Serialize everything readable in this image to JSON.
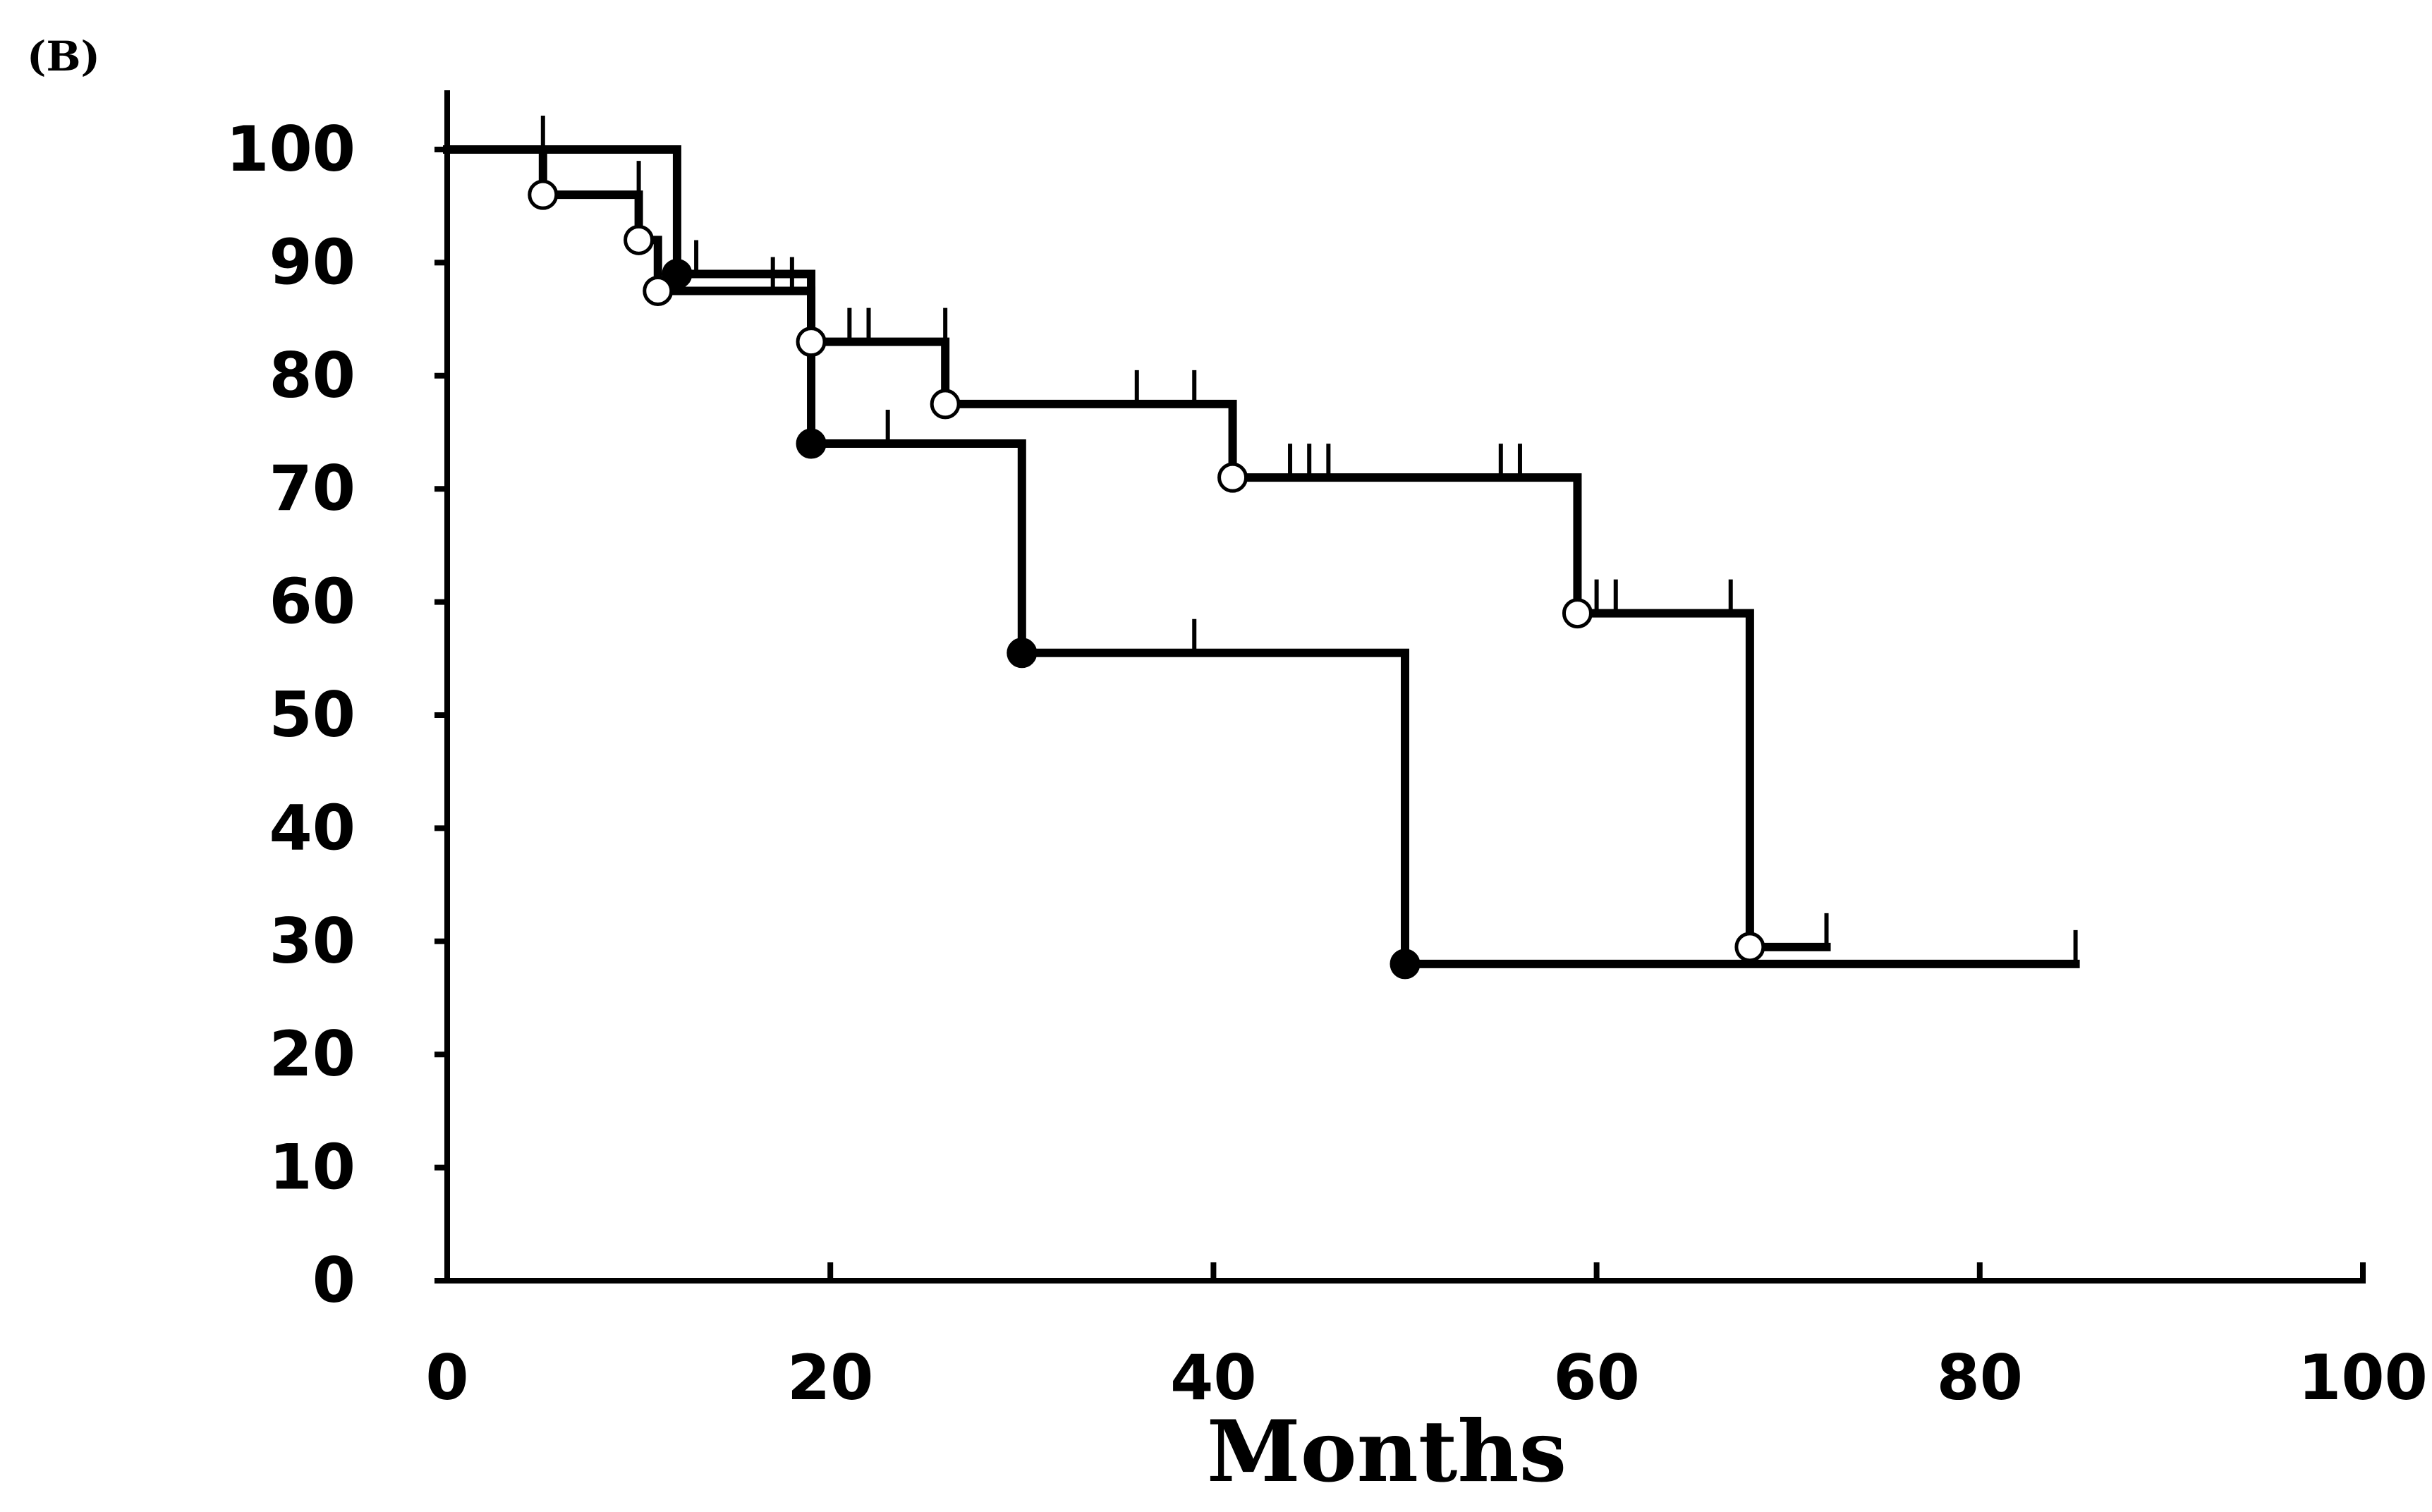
{
  "panel_label": "(B)",
  "chart_data": {
    "type": "line",
    "subtype": "kaplan-meier",
    "title": "",
    "xlabel": "Months",
    "ylabel": "",
    "xlim": [
      0,
      100
    ],
    "ylim": [
      0,
      100
    ],
    "xticks": [
      0,
      20,
      40,
      60,
      80,
      100
    ],
    "yticks": [
      0,
      10,
      20,
      30,
      40,
      50,
      60,
      70,
      80,
      90,
      100
    ],
    "grid": false,
    "legend": "none",
    "series": [
      {
        "marker": "filled-circle",
        "color": "#000000",
        "steps": [
          [
            0,
            100
          ],
          [
            12,
            100
          ],
          [
            12,
            89
          ],
          [
            19,
            89
          ],
          [
            19,
            74
          ],
          [
            30,
            74
          ],
          [
            30,
            55.5
          ],
          [
            50,
            55.5
          ],
          [
            50,
            28
          ],
          [
            85,
            28
          ]
        ],
        "event_markers": [
          [
            12,
            89
          ],
          [
            19,
            74
          ],
          [
            30,
            55.5
          ],
          [
            50,
            28
          ]
        ],
        "censor_ticks": [
          [
            5,
            100
          ],
          [
            13,
            89
          ],
          [
            23,
            74
          ],
          [
            39,
            55.5
          ],
          [
            85,
            28
          ]
        ]
      },
      {
        "marker": "open-circle",
        "color": "#000000",
        "steps": [
          [
            0,
            100
          ],
          [
            5,
            100
          ],
          [
            5,
            96
          ],
          [
            10,
            96
          ],
          [
            10,
            92
          ],
          [
            11,
            92
          ],
          [
            11,
            87.5
          ],
          [
            19,
            87.5
          ],
          [
            19,
            83
          ],
          [
            26,
            83
          ],
          [
            26,
            77.5
          ],
          [
            41,
            77.5
          ],
          [
            41,
            71
          ],
          [
            59,
            71
          ],
          [
            59,
            59
          ],
          [
            68,
            59
          ],
          [
            68,
            29.5
          ],
          [
            72,
            29.5
          ]
        ],
        "event_markers": [
          [
            5,
            96
          ],
          [
            10,
            92
          ],
          [
            11,
            87.5
          ],
          [
            19,
            83
          ],
          [
            26,
            77.5
          ],
          [
            41,
            71
          ],
          [
            59,
            59
          ],
          [
            68,
            29.5
          ]
        ],
        "censor_ticks": [
          [
            10,
            96
          ],
          [
            17,
            87.5
          ],
          [
            18,
            87.5
          ],
          [
            21,
            83
          ],
          [
            22,
            83
          ],
          [
            26,
            83
          ],
          [
            36,
            77.5
          ],
          [
            39,
            77.5
          ],
          [
            44,
            71
          ],
          [
            45,
            71
          ],
          [
            46,
            71
          ],
          [
            55,
            71
          ],
          [
            56,
            71
          ],
          [
            60,
            59
          ],
          [
            61,
            59
          ],
          [
            67,
            59
          ],
          [
            72,
            29.5
          ]
        ]
      }
    ]
  }
}
